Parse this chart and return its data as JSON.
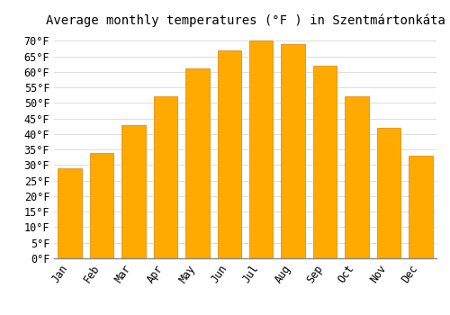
{
  "title": "Average monthly temperatures (°F ) in Szentmártonkáta",
  "months": [
    "Jan",
    "Feb",
    "Mar",
    "Apr",
    "May",
    "Jun",
    "Jul",
    "Aug",
    "Sep",
    "Oct",
    "Nov",
    "Dec"
  ],
  "values": [
    29,
    34,
    43,
    52,
    61,
    67,
    70,
    69,
    62,
    52,
    42,
    33
  ],
  "bar_color": "#FFAA00",
  "bar_edge_color": "#E08000",
  "background_color": "#FFFFFF",
  "grid_color": "#DDDDDD",
  "ylim": [
    0,
    73
  ],
  "yticks": [
    0,
    5,
    10,
    15,
    20,
    25,
    30,
    35,
    40,
    45,
    50,
    55,
    60,
    65,
    70
  ],
  "title_fontsize": 10,
  "tick_fontsize": 8.5,
  "font_family": "monospace"
}
